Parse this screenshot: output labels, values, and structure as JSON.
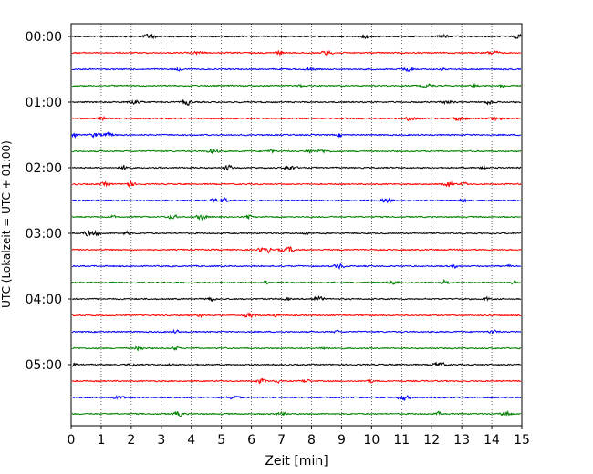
{
  "chart_data": {
    "type": "line",
    "xlabel": "Zeit  [min]",
    "ylabel": "UTC (Lokalzeit = UTC + 01:00)",
    "xlim": [
      0,
      15
    ],
    "x_ticks": [
      "0",
      "1",
      "2",
      "3",
      "4",
      "5",
      "6",
      "7",
      "8",
      "9",
      "10",
      "11",
      "12",
      "13",
      "14",
      "15"
    ],
    "y_tick_labels": [
      "00:00",
      "01:00",
      "02:00",
      "03:00",
      "04:00",
      "05:00"
    ],
    "traces_per_hour": 4,
    "trace_count": 24,
    "trace_colors": [
      "#000000",
      "#ff0000",
      "#0000ff",
      "#008000"
    ],
    "grid": "vertical dotted lines at each minute"
  }
}
